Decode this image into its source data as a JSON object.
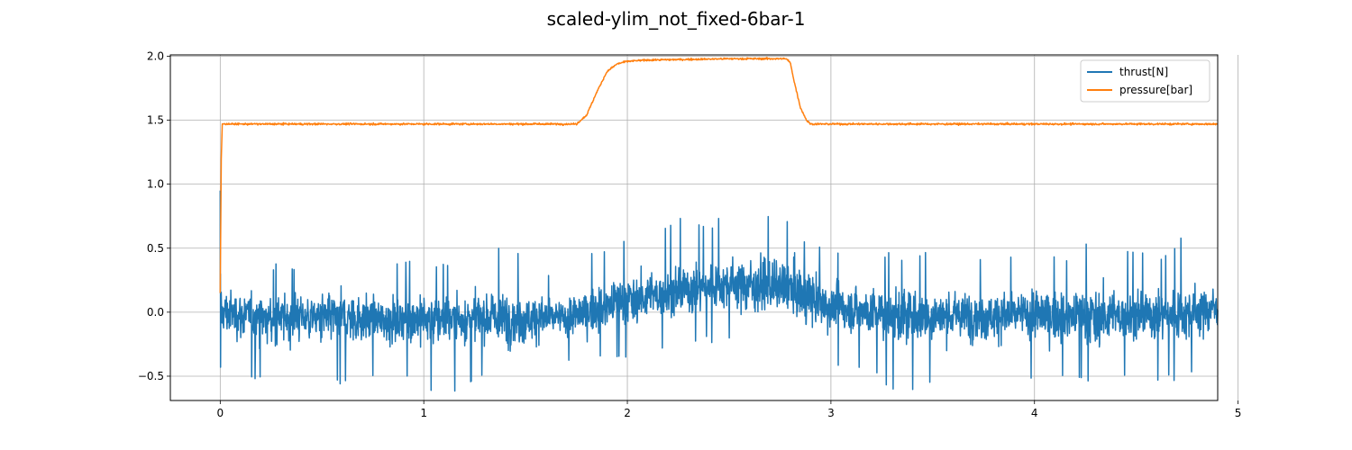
{
  "chart_data": {
    "type": "line",
    "title": "scaled-ylim_not_fixed-6bar-1",
    "xlabel": "",
    "ylabel": "",
    "xlim": [
      -0.245,
      4.9
    ],
    "ylim": [
      -0.69,
      2.01
    ],
    "xticks": [
      0,
      1,
      2,
      3,
      4,
      5
    ],
    "xtick_labels": [
      "0",
      "1",
      "2",
      "3",
      "4",
      "5"
    ],
    "yticks": [
      -0.5,
      0.0,
      0.5,
      1.0,
      1.5,
      2.0
    ],
    "ytick_labels": [
      "−0.5",
      "0.0",
      "0.5",
      "1.0",
      "1.5",
      "2.0"
    ],
    "grid": true,
    "legend_position": "top-right",
    "series": [
      {
        "name": "thrust[N]",
        "color": "#1f77b4",
        "x": [
          0.0,
          0.1,
          0.2,
          0.3,
          0.4,
          0.5,
          0.6,
          0.7,
          0.8,
          0.9,
          1.0,
          1.1,
          1.2,
          1.3,
          1.4,
          1.5,
          1.6,
          1.7,
          1.8,
          1.9,
          2.0,
          2.1,
          2.2,
          2.3,
          2.4,
          2.5,
          2.6,
          2.7,
          2.8,
          2.9,
          3.0,
          3.1,
          3.2,
          3.3,
          3.4,
          3.5,
          3.6,
          3.7,
          3.8,
          3.9,
          4.0,
          4.1,
          4.2,
          4.3,
          4.4,
          4.5,
          4.6,
          4.7,
          4.8,
          4.9
        ],
        "mean": [
          0.0,
          -0.02,
          -0.05,
          -0.05,
          -0.03,
          -0.05,
          -0.04,
          -0.05,
          -0.06,
          -0.05,
          -0.05,
          -0.06,
          -0.05,
          -0.04,
          -0.05,
          -0.05,
          -0.04,
          -0.05,
          0.0,
          0.05,
          0.1,
          0.12,
          0.15,
          0.18,
          0.2,
          0.22,
          0.22,
          0.2,
          0.18,
          0.1,
          0.05,
          0.02,
          0.0,
          -0.02,
          -0.03,
          -0.03,
          -0.03,
          -0.02,
          -0.03,
          -0.02,
          -0.02,
          -0.03,
          -0.03,
          -0.03,
          -0.03,
          -0.02,
          -0.02,
          -0.02,
          0.0,
          0.05
        ],
        "low": [
          -0.43,
          -0.5,
          -0.58,
          -0.55,
          -0.58,
          -0.55,
          -0.62,
          -0.58,
          -0.55,
          -0.55,
          -0.58,
          -0.69,
          -0.6,
          -0.5,
          -0.52,
          -0.55,
          -0.5,
          -0.45,
          -0.4,
          -0.38,
          -0.35,
          -0.33,
          -0.3,
          -0.28,
          -0.26,
          -0.25,
          -0.27,
          -0.28,
          -0.3,
          -0.55,
          -0.5,
          -0.45,
          -0.5,
          -0.6,
          -0.65,
          -0.55,
          -0.5,
          -0.55,
          -0.55,
          -0.5,
          -0.6,
          -0.55,
          -0.52,
          -0.55,
          -0.5,
          -0.55,
          -0.58,
          -0.55,
          -0.5,
          -0.35
        ],
        "high": [
          0.52,
          0.42,
          0.42,
          0.4,
          0.4,
          0.4,
          0.45,
          0.4,
          0.35,
          0.42,
          0.4,
          0.38,
          0.45,
          0.45,
          0.55,
          0.45,
          0.35,
          0.3,
          0.45,
          0.55,
          0.62,
          0.6,
          0.68,
          0.78,
          0.72,
          0.75,
          0.78,
          0.8,
          0.72,
          0.55,
          0.5,
          0.42,
          0.48,
          0.5,
          0.45,
          0.48,
          0.4,
          0.45,
          0.42,
          0.5,
          0.42,
          0.45,
          0.48,
          0.68,
          0.5,
          0.48,
          0.45,
          0.58,
          0.58,
          0.38
        ],
        "start_values": [
          0.95,
          0.15,
          0.3,
          -0.43
        ]
      },
      {
        "name": "pressure[bar]",
        "color": "#ff7f0e",
        "x": [
          0.0,
          0.005,
          0.01,
          0.02,
          1.7,
          1.75,
          1.8,
          1.85,
          1.9,
          1.95,
          2.0,
          2.1,
          2.5,
          2.78,
          2.8,
          2.82,
          2.85,
          2.88,
          2.9,
          2.95,
          3.0,
          4.9
        ],
        "values": [
          0.15,
          1.2,
          1.47,
          1.47,
          1.47,
          1.47,
          1.54,
          1.72,
          1.88,
          1.94,
          1.96,
          1.97,
          1.98,
          1.98,
          1.95,
          1.8,
          1.6,
          1.5,
          1.47,
          1.47,
          1.47,
          1.47
        ]
      }
    ]
  }
}
